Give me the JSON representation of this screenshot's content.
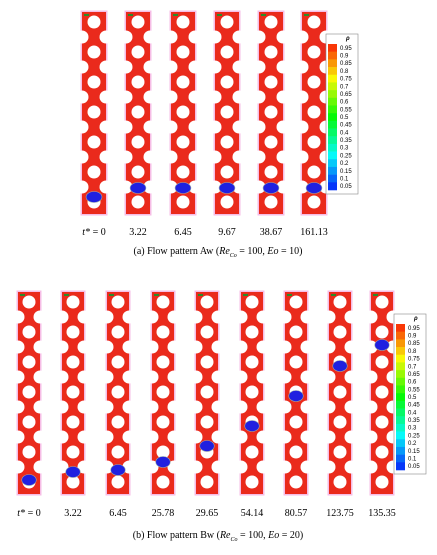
{
  "panel_a": {
    "time_symbol": "t*",
    "times": [
      "= 0",
      "3.22",
      "6.45",
      "9.67",
      "38.67",
      "161.13"
    ],
    "caption": {
      "prefix": "(a) Flow pattern Aw (",
      "re": "Re",
      "re_sub": "Co",
      "mid": " = 100, ",
      "eo": "Eo",
      "end": " = 10)"
    },
    "colorbar": {
      "label": "ρ",
      "ticks": [
        0.95,
        0.9,
        0.85,
        0.8,
        0.75,
        0.7,
        0.65,
        0.6,
        0.55,
        0.5,
        0.45,
        0.4,
        0.35,
        0.3,
        0.25,
        0.2,
        0.15,
        0.1,
        0.05
      ]
    }
  },
  "panel_b": {
    "time_symbol": "t*",
    "times": [
      "= 0",
      "3.22",
      "6.45",
      "25.78",
      "29.65",
      "54.14",
      "80.57",
      "123.75",
      "135.35"
    ],
    "caption": {
      "prefix": "(b) Flow pattern Bw (",
      "re": "Re",
      "re_sub": "Co",
      "mid": " = 100, ",
      "eo": "Eo",
      "end": " = 20)"
    },
    "colorbar": {
      "label": "ρ",
      "ticks": [
        0.95,
        0.9,
        0.85,
        0.8,
        0.75,
        0.7,
        0.65,
        0.6,
        0.55,
        0.5,
        0.45,
        0.4,
        0.35,
        0.3,
        0.25,
        0.2,
        0.15,
        0.1,
        0.05
      ]
    }
  }
}
